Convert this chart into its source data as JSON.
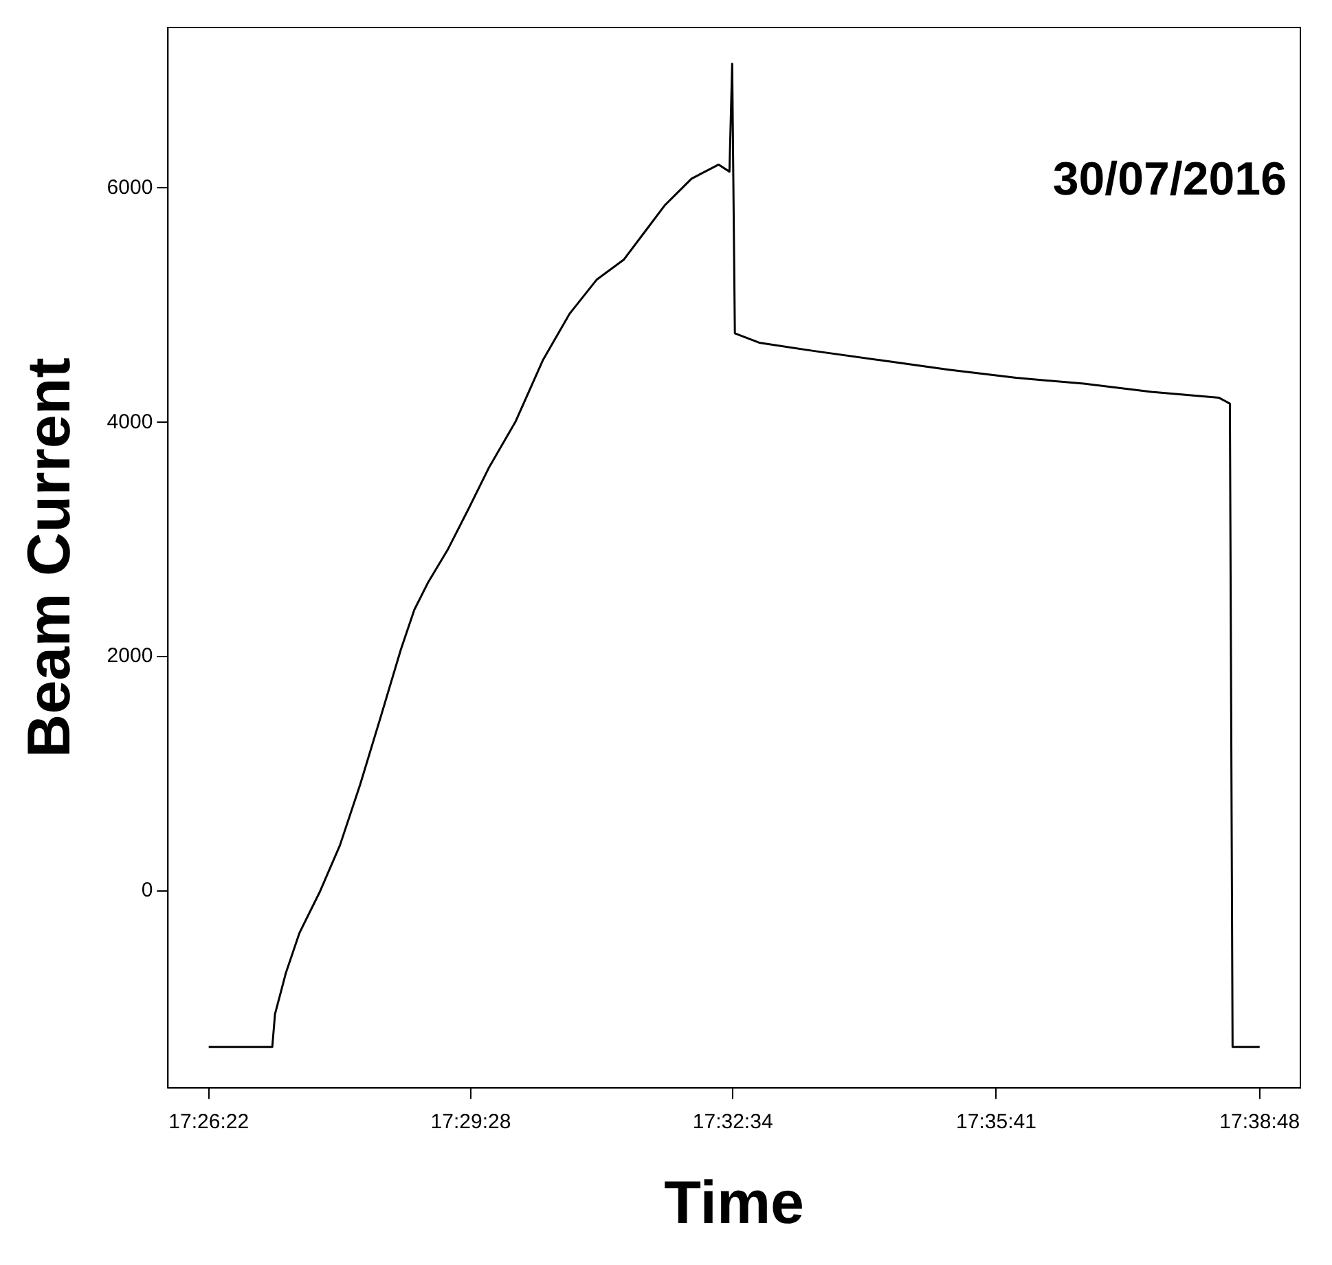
{
  "chart_data": {
    "type": "line",
    "xlabel": "Time",
    "ylabel": "Beam Current",
    "annotations": [
      "30/07/2016"
    ],
    "xlim": [
      17.4314,
      17.6547
    ],
    "ylim": [
      -1680,
      7370
    ],
    "xticks": [
      {
        "value": 17.439444,
        "label": "17:26:22"
      },
      {
        "value": 17.491111,
        "label": "17:29:28"
      },
      {
        "value": 17.542778,
        "label": "17:32:34"
      },
      {
        "value": 17.594722,
        "label": "17:35:41"
      },
      {
        "value": 17.646667,
        "label": "17:38:48"
      }
    ],
    "yticks": [
      0,
      2000,
      4000,
      6000
    ],
    "grid": false,
    "legend": false,
    "marker": "none",
    "line_style": "solid",
    "series": [
      {
        "color": "#000000",
        "x": [
          17.43944,
          17.45198,
          17.45251,
          17.45465,
          17.45731,
          17.46131,
          17.46531,
          17.46931,
          17.47331,
          17.47732,
          17.47998,
          17.48265,
          17.48665,
          17.49065,
          17.49465,
          17.49998,
          17.50532,
          17.51065,
          17.51599,
          17.52132,
          17.52532,
          17.52932,
          17.53465,
          17.53999,
          17.54212,
          17.54266,
          17.54319,
          17.54799,
          17.55866,
          17.57199,
          17.58533,
          17.59866,
          17.612,
          17.62533,
          17.63867,
          17.6408,
          17.64133,
          17.64667
        ],
        "values": [
          -1330,
          -1330,
          -1050,
          -700,
          -360,
          -10,
          390,
          910,
          1480,
          2060,
          2400,
          2630,
          2920,
          3260,
          3610,
          4010,
          4530,
          4930,
          5220,
          5390,
          5620,
          5850,
          6080,
          6200,
          6140,
          7060,
          4760,
          4680,
          4610,
          4530,
          4450,
          4380,
          4330,
          4260,
          4210,
          4160,
          -1330,
          -1330
        ]
      }
    ]
  }
}
